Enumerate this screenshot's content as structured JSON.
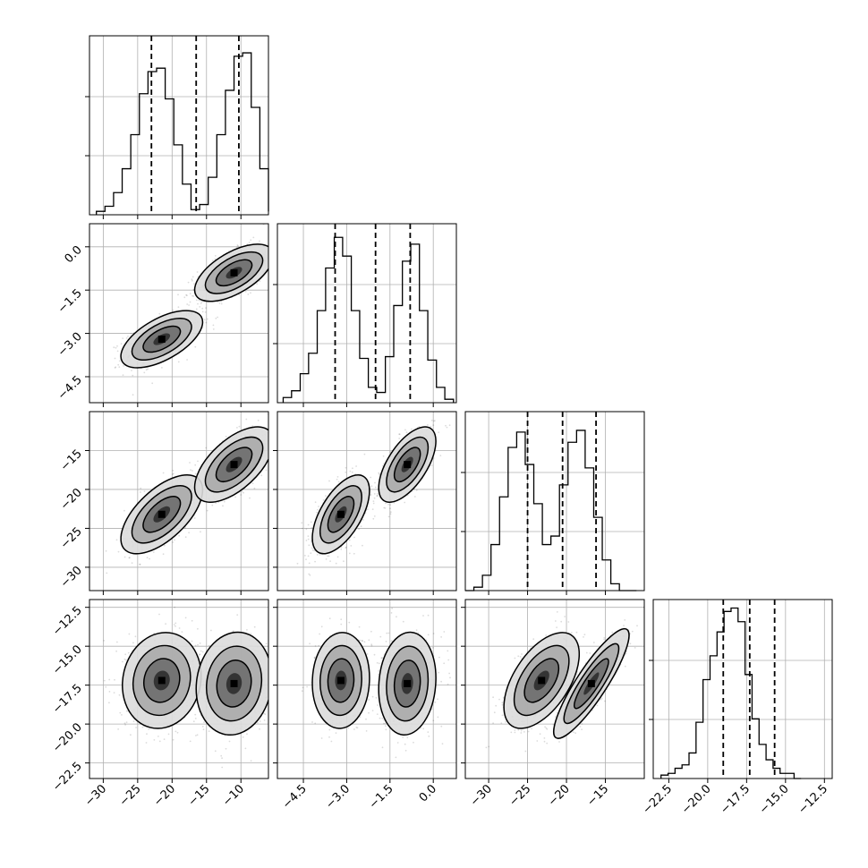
{
  "chart_data": {
    "type": "corner",
    "dimensions": [
      {
        "index": 0,
        "range": [
          -32,
          -6
        ],
        "ticks": [
          -30,
          -25,
          -20,
          -15,
          -10
        ],
        "tick_labels": [
          "−30",
          "−25",
          "−20",
          "−15",
          "−10"
        ],
        "quantiles": [
          -23.0,
          -16.5,
          -10.3
        ],
        "histogram": {
          "bins": [
            -31,
            -29.75,
            -28.5,
            -27.25,
            -26,
            -24.75,
            -23.5,
            -22.25,
            -21,
            -19.75,
            -18.5,
            -17.25,
            -16,
            -14.75,
            -13.5,
            -12.25,
            -11,
            -9.75,
            -8.5,
            -7.25,
            -6
          ],
          "counts": [
            0.02,
            0.05,
            0.13,
            0.27,
            0.47,
            0.71,
            0.84,
            0.86,
            0.68,
            0.41,
            0.18,
            0.03,
            0.06,
            0.22,
            0.47,
            0.73,
            0.93,
            0.95,
            0.63,
            0.27,
            0.02
          ],
          "peak": 1.0
        }
      },
      {
        "index": 1,
        "range": [
          -5.4,
          0.8
        ],
        "ticks": [
          -4.5,
          -3.0,
          -1.5,
          0.0
        ],
        "tick_labels": [
          "−4.5",
          "−3.0",
          "−1.5",
          "0.0"
        ],
        "quantiles": [
          -3.4,
          -2.0,
          -0.8
        ],
        "histogram": {
          "bins": [
            -5.2,
            -4.91,
            -4.61,
            -4.32,
            -4.02,
            -3.73,
            -3.43,
            -3.14,
            -2.84,
            -2.55,
            -2.25,
            -1.96,
            -1.66,
            -1.37,
            -1.07,
            -0.78,
            -0.48,
            -0.19,
            0.11,
            0.4,
            0.7
          ],
          "counts": [
            0.03,
            0.07,
            0.17,
            0.29,
            0.54,
            0.79,
            0.97,
            0.86,
            0.54,
            0.26,
            0.09,
            0.06,
            0.27,
            0.57,
            0.83,
            0.93,
            0.54,
            0.25,
            0.09,
            0.02,
            0.0
          ],
          "peak": 1.0
        }
      },
      {
        "index": 2,
        "range": [
          -33,
          -10
        ],
        "ticks": [
          -30,
          -25,
          -20,
          -15
        ],
        "tick_labels": [
          "−30",
          "−25",
          "−20",
          "−15"
        ],
        "quantiles": [
          -25.0,
          -20.5,
          -16.2
        ],
        "histogram": {
          "bins": [
            -33,
            -31.9,
            -30.8,
            -29.7,
            -28.6,
            -27.5,
            -26.4,
            -25.3,
            -24.2,
            -23.1,
            -22.0,
            -20.9,
            -19.8,
            -18.7,
            -17.6,
            -16.5,
            -15.4,
            -14.3,
            -13.2,
            -12.1,
            -11.0
          ],
          "counts": [
            0.0,
            0.02,
            0.09,
            0.27,
            0.55,
            0.84,
            0.93,
            0.74,
            0.51,
            0.27,
            0.32,
            0.62,
            0.87,
            0.94,
            0.72,
            0.43,
            0.18,
            0.04,
            0.0,
            0.0,
            0.0
          ],
          "peak": 1.0
        }
      },
      {
        "index": 3,
        "range": [
          -23.5,
          -12.0
        ],
        "ticks": [
          -22.5,
          -20.0,
          -17.5,
          -15.0,
          -12.5
        ],
        "tick_labels": [
          "−22.5",
          "−20.0",
          "−17.5",
          "−15.0",
          "−12.5"
        ],
        "quantiles": [
          -19.0,
          -17.3,
          -15.7
        ],
        "histogram": {
          "bins": [
            -23.0,
            -22.55,
            -22.1,
            -21.65,
            -21.2,
            -20.75,
            -20.3,
            -19.85,
            -19.4,
            -18.95,
            -18.5,
            -18.05,
            -17.6,
            -17.15,
            -16.7,
            -16.25,
            -15.8,
            -15.35,
            -14.9,
            -14.45,
            -14.0
          ],
          "counts": [
            0.02,
            0.03,
            0.06,
            0.08,
            0.15,
            0.33,
            0.58,
            0.72,
            0.86,
            0.98,
            1.0,
            0.92,
            0.61,
            0.35,
            0.2,
            0.11,
            0.06,
            0.03,
            0.03,
            0.0,
            0.0
          ],
          "peak": 1.0
        }
      }
    ],
    "modes": [
      {
        "center": [
          -21.5,
          -3.2,
          -23.2,
          -17.2
        ]
      },
      {
        "center": [
          -11.0,
          -0.9,
          -16.8,
          -17.4
        ]
      }
    ],
    "pairs": [
      {
        "x": 0,
        "y": 1,
        "clusters": [
          {
            "cx": -21.5,
            "cy": -3.2,
            "sx": 2.7,
            "sy": 0.45,
            "rho": 0.6
          },
          {
            "cx": -11.0,
            "cy": -0.9,
            "sx": 2.6,
            "sy": 0.45,
            "rho": 0.6
          }
        ]
      },
      {
        "x": 0,
        "y": 2,
        "clusters": [
          {
            "cx": -21.5,
            "cy": -23.2,
            "sx": 2.7,
            "sy": 2.3,
            "rho": 0.62
          },
          {
            "cx": -11.0,
            "cy": -16.8,
            "sx": 2.6,
            "sy": 2.2,
            "rho": 0.6
          }
        ]
      },
      {
        "x": 1,
        "y": 2,
        "clusters": [
          {
            "cx": -3.2,
            "cy": -23.2,
            "sx": 0.45,
            "sy": 2.3,
            "rho": 0.6
          },
          {
            "cx": -0.9,
            "cy": -16.8,
            "sx": 0.45,
            "sy": 2.2,
            "rho": 0.62
          }
        ]
      },
      {
        "x": 0,
        "y": 3,
        "clusters": [
          {
            "cx": -21.5,
            "cy": -17.2,
            "sx": 2.6,
            "sy": 1.4,
            "rho": 0.1
          },
          {
            "cx": -11.0,
            "cy": -17.4,
            "sx": 2.5,
            "sy": 1.5,
            "rho": 0.1
          }
        ]
      },
      {
        "x": 1,
        "y": 3,
        "clusters": [
          {
            "cx": -3.2,
            "cy": -17.2,
            "sx": 0.45,
            "sy": 1.4,
            "rho": 0.05
          },
          {
            "cx": -0.9,
            "cy": -17.4,
            "sx": 0.45,
            "sy": 1.5,
            "rho": 0.1
          }
        ]
      },
      {
        "x": 2,
        "y": 3,
        "clusters": [
          {
            "cx": -23.2,
            "cy": -17.2,
            "sx": 2.2,
            "sy": 1.4,
            "rho": 0.55
          },
          {
            "cx": -16.8,
            "cy": -17.4,
            "sx": 2.2,
            "sy": 1.6,
            "rho": 0.88
          }
        ]
      }
    ],
    "contour_sigmas": [
      1.0,
      1.6,
      2.2
    ],
    "grid": true,
    "colors": {
      "line": "#000000",
      "grid": "#b0b0b0",
      "points": "#000000",
      "background": "#ffffff"
    }
  }
}
